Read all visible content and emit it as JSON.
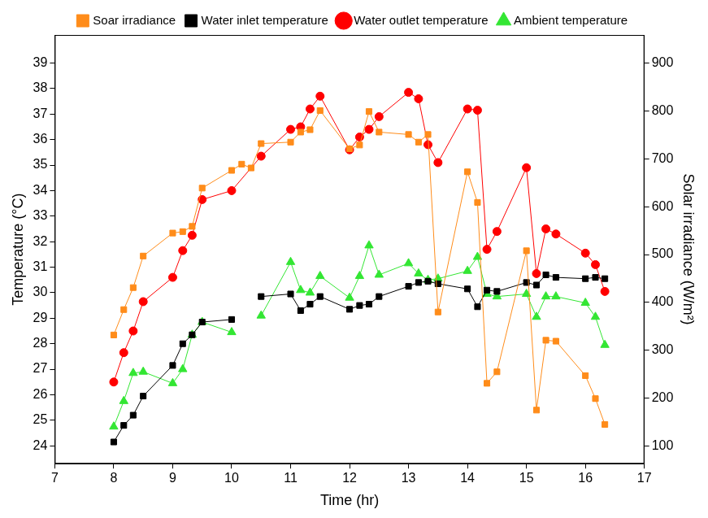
{
  "chart_data": {
    "type": "line",
    "x_label": "Time (hr)",
    "y_label": "Temperature (°C)",
    "y2_label": "Solar irradiance (W/m²)",
    "xlim": [
      7,
      17
    ],
    "xticks": [
      7,
      8,
      9,
      10,
      11,
      12,
      13,
      14,
      15,
      16,
      17
    ],
    "ylim": [
      23.3,
      40.1
    ],
    "yticks": [
      24,
      25,
      26,
      27,
      28,
      29,
      30,
      31,
      32,
      33,
      34,
      35,
      36,
      37,
      38,
      39
    ],
    "y2lim": [
      63,
      959
    ],
    "y2ticks": [
      100,
      200,
      300,
      400,
      500,
      600,
      700,
      800,
      900
    ],
    "grid": false,
    "legend": "top",
    "series": [
      {
        "name": "Soar irradiance",
        "color": "#ff8c1a",
        "marker": "square",
        "line_style": "solid",
        "axis": "y2",
        "x": [
          8.0,
          8.17,
          8.33,
          8.5,
          9.0,
          9.17,
          9.33,
          9.5,
          10.0,
          10.17,
          10.33,
          10.5,
          11.0,
          11.17,
          11.33,
          11.5,
          12.0,
          12.17,
          12.33,
          12.5,
          13.0,
          13.17,
          13.33,
          13.5,
          14.0,
          14.17,
          14.33,
          14.5,
          15.0,
          15.17,
          15.33,
          15.5,
          16.0,
          16.17,
          16.33
        ],
        "values": [
          332,
          385,
          431,
          497,
          545,
          548,
          559,
          639,
          676,
          689,
          681,
          732,
          735,
          756,
          761,
          801,
          721,
          729,
          799,
          756,
          751,
          735,
          751,
          380,
          673,
          609,
          231,
          255,
          508,
          175,
          321,
          319,
          247,
          199,
          145
        ]
      },
      {
        "name": "Water inlet temperature",
        "color": "#000000",
        "marker": "square",
        "line_style": "solid",
        "x": [
          8.0,
          8.17,
          8.33,
          8.5,
          9.0,
          9.17,
          9.33,
          9.5,
          10.0,
          10.25,
          10.5,
          11.0,
          11.17,
          11.33,
          11.5,
          12.0,
          12.17,
          12.33,
          12.5,
          13.0,
          13.17,
          13.33,
          13.5,
          14.0,
          14.17,
          14.33,
          14.5,
          15.0,
          15.17,
          15.33,
          15.5,
          16.0,
          16.17,
          16.33
        ],
        "values": [
          24.15,
          24.8,
          25.2,
          25.95,
          27.15,
          28.0,
          28.35,
          28.85,
          28.95,
          null,
          29.85,
          29.95,
          29.3,
          29.55,
          29.85,
          29.35,
          29.5,
          29.55,
          29.85,
          30.25,
          30.4,
          30.45,
          30.35,
          30.15,
          29.45,
          30.1,
          30.05,
          30.4,
          30.3,
          30.7,
          30.6,
          30.55,
          30.6,
          30.55
        ]
      },
      {
        "name": "Water outlet temperature",
        "color": "#ff0000",
        "marker": "circle",
        "line_style": "solid",
        "x": [
          8.0,
          8.17,
          8.33,
          8.5,
          9.0,
          9.17,
          9.33,
          9.5,
          10.0,
          10.5,
          11.0,
          11.17,
          11.33,
          11.5,
          12.0,
          12.17,
          12.33,
          12.5,
          13.0,
          13.17,
          13.33,
          13.5,
          14.0,
          14.17,
          14.33,
          14.5,
          15.0,
          15.17,
          15.33,
          15.5,
          16.0,
          16.17,
          16.33
        ],
        "values": [
          26.5,
          27.65,
          28.5,
          29.65,
          30.6,
          31.65,
          32.25,
          33.65,
          34.0,
          35.35,
          36.4,
          36.5,
          37.2,
          37.7,
          35.6,
          36.1,
          36.4,
          36.9,
          37.85,
          37.6,
          35.8,
          35.1,
          37.2,
          37.15,
          31.7,
          32.4,
          34.9,
          30.75,
          32.5,
          32.3,
          31.55,
          31.1,
          30.05
        ]
      },
      {
        "name": "Ambient temperature",
        "color": "#33e633",
        "marker": "triangle",
        "line_style": "solid",
        "x": [
          8.0,
          8.17,
          8.33,
          8.5,
          9.0,
          9.17,
          9.33,
          9.5,
          10.0,
          10.25,
          10.5,
          11.0,
          11.17,
          11.33,
          11.5,
          12.0,
          12.17,
          12.33,
          12.5,
          13.0,
          13.17,
          13.33,
          13.5,
          14.0,
          14.17,
          14.33,
          14.5,
          15.0,
          15.17,
          15.33,
          15.5,
          16.0,
          16.17,
          16.33
        ],
        "values": [
          24.75,
          25.75,
          26.85,
          26.9,
          26.45,
          27.0,
          28.35,
          28.85,
          28.45,
          null,
          29.1,
          31.2,
          30.1,
          30.0,
          30.65,
          29.8,
          30.65,
          31.85,
          30.7,
          31.15,
          30.75,
          30.5,
          30.55,
          30.85,
          31.4,
          29.95,
          29.85,
          29.95,
          29.05,
          29.85,
          29.85,
          29.6,
          29.05,
          27.95
        ]
      }
    ]
  }
}
